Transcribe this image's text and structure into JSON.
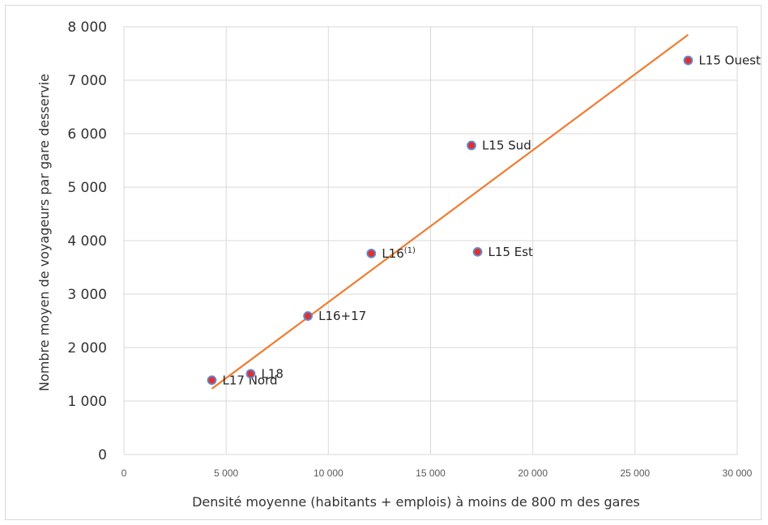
{
  "chart_data": {
    "type": "scatter",
    "xlabel": "Densité moyenne (habitants + emplois) à moins de 800 m des gares",
    "ylabel": "Nombre moyen de voyageurs par gare desservie",
    "xlim": [
      0,
      30000
    ],
    "ylim": [
      0,
      8000
    ],
    "x_ticks": [
      0,
      5000,
      10000,
      15000,
      20000,
      25000,
      30000
    ],
    "y_ticks": [
      0,
      1000,
      2000,
      3000,
      4000,
      5000,
      6000,
      7000,
      8000
    ],
    "x_tick_labels": [
      "0",
      "5 000",
      "10 000",
      "15 000",
      "20 000",
      "25 000",
      "30 000"
    ],
    "y_tick_labels": [
      "0",
      "1 000",
      "2 000",
      "3 000",
      "4 000",
      "5 000",
      "6 000",
      "7 000",
      "8 000"
    ],
    "grid": true,
    "points": [
      {
        "label": "L17 Nord",
        "sup": "",
        "x": 4300,
        "y": 1390
      },
      {
        "label": "L18",
        "sup": "",
        "x": 6200,
        "y": 1510
      },
      {
        "label": "L16+17",
        "sup": "",
        "x": 9000,
        "y": 2590
      },
      {
        "label": "L16",
        "sup": "(1)",
        "x": 12100,
        "y": 3760
      },
      {
        "label": "L15 Est",
        "sup": "",
        "x": 17300,
        "y": 3790
      },
      {
        "label": "L15 Sud",
        "sup": "",
        "x": 17000,
        "y": 5780
      },
      {
        "label": "L15 Ouest",
        "sup": "",
        "x": 27600,
        "y": 7370
      }
    ],
    "trendline": {
      "x": [
        4300,
        27600
      ],
      "y": [
        1230,
        7850
      ]
    },
    "colors": {
      "marker_fill": "#e03030",
      "marker_stroke": "#5b8fd6",
      "trendline": "#ed7d31",
      "grid": "#d9d9d9"
    }
  }
}
